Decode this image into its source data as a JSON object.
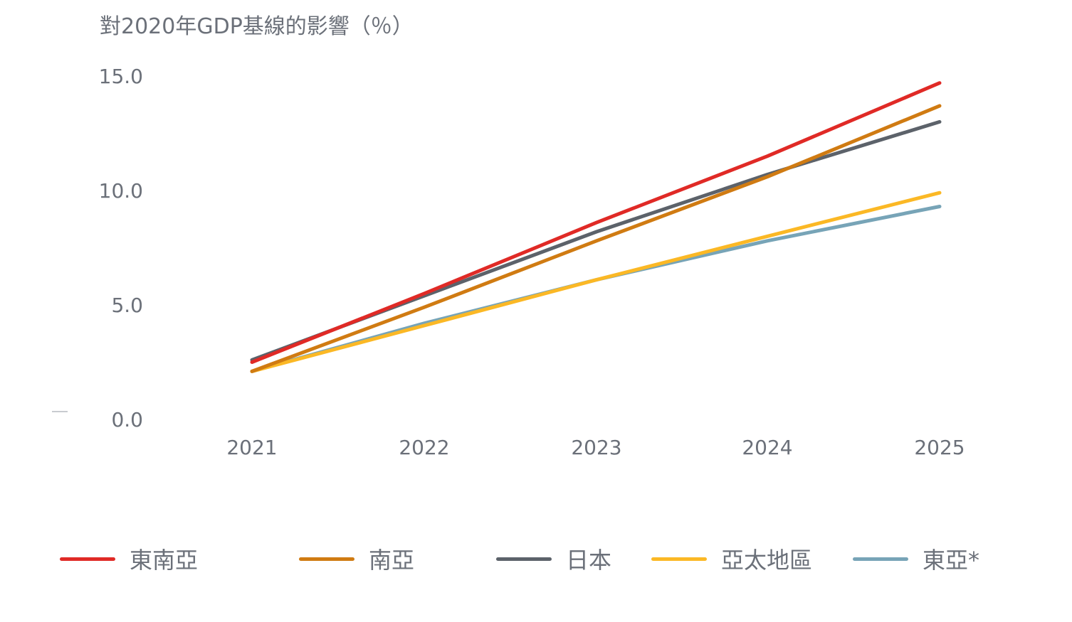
{
  "chart_data": {
    "type": "line",
    "title": "對2020年GDP基線的影響（％）",
    "xlabel": "",
    "ylabel": "",
    "x": [
      "2021",
      "2022",
      "2023",
      "2024",
      "2025"
    ],
    "y_ticks": [
      "0.0",
      "5.0",
      "10.0",
      "15.0"
    ],
    "ylim": [
      0,
      15
    ],
    "grid": false,
    "legend_position": "bottom",
    "series": [
      {
        "name": "東南亞",
        "color": "#e02a26",
        "values": [
          2.5,
          5.5,
          8.6,
          11.5,
          14.7
        ]
      },
      {
        "name": "南亞",
        "color": "#d07b12",
        "values": [
          2.1,
          4.9,
          7.8,
          10.6,
          13.7
        ]
      },
      {
        "name": "日本",
        "color": "#5c626a",
        "values": [
          2.6,
          5.4,
          8.2,
          10.7,
          13.0
        ]
      },
      {
        "name": "亞太地區",
        "color": "#fbb825",
        "values": [
          2.1,
          4.1,
          6.1,
          8.0,
          9.9
        ]
      },
      {
        "name": "東亞*",
        "color": "#77a4b7",
        "values": [
          2.1,
          4.2,
          6.1,
          7.8,
          9.3
        ]
      }
    ]
  }
}
